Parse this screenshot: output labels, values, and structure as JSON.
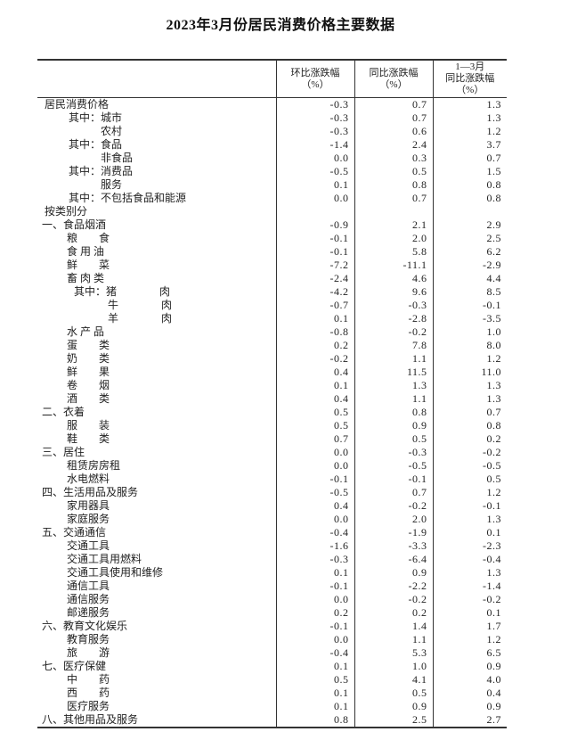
{
  "title": "2023年3月份居民消费价格主要数据",
  "table": {
    "headers": [
      "环比涨跌幅\n（%）",
      "同比涨跌幅\n（%）",
      "1—3月\n同比涨跌幅\n（%）"
    ],
    "rows": [
      {
        "label": "居民消费价格",
        "ind": 8,
        "mom": "-0.3",
        "yoy": "0.7",
        "ytd": "1.3"
      },
      {
        "label": "其中：城市",
        "ind": 35,
        "mom": "-0.3",
        "yoy": "0.7",
        "ytd": "1.3"
      },
      {
        "label": "农村",
        "ind": 71,
        "mom": "-0.3",
        "yoy": "0.6",
        "ytd": "1.2"
      },
      {
        "label": "其中：食品",
        "ind": 35,
        "mom": "-1.4",
        "yoy": "2.4",
        "ytd": "3.7"
      },
      {
        "label": "非食品",
        "ind": 71,
        "mom": "0.0",
        "yoy": "0.3",
        "ytd": "0.7"
      },
      {
        "label": "其中：消费品",
        "ind": 35,
        "mom": "-0.5",
        "yoy": "0.5",
        "ytd": "1.5"
      },
      {
        "label": "服务",
        "ind": 71,
        "mom": "0.1",
        "yoy": "0.8",
        "ytd": "0.8"
      },
      {
        "label": "其中：不包括食品和能源",
        "ind": 35,
        "mom": "0.0",
        "yoy": "0.7",
        "ytd": "0.8"
      },
      {
        "label": "按类别分",
        "ind": 8,
        "mom": "",
        "yoy": "",
        "ytd": ""
      },
      {
        "label": "一、食品烟酒",
        "ind": 5,
        "mom": "-0.9",
        "yoy": "2.1",
        "ytd": "2.9"
      },
      {
        "label": "粮　　食",
        "ind": 33,
        "mom": "-0.1",
        "yoy": "2.0",
        "ytd": "2.5"
      },
      {
        "label": "食 用 油",
        "ind": 33,
        "mom": "-0.1",
        "yoy": "5.8",
        "ytd": "6.2"
      },
      {
        "label": "鲜　　菜",
        "ind": 33,
        "mom": "-7.2",
        "yoy": "-11.1",
        "ytd": "-2.9"
      },
      {
        "label": "畜 肉 类",
        "ind": 33,
        "mom": "-2.4",
        "yoy": "4.6",
        "ytd": "4.4"
      },
      {
        "label": "其中：猪　　　　肉",
        "ind": 41,
        "mom": "-4.2",
        "yoy": "9.6",
        "ytd": "8.5"
      },
      {
        "label": "牛　　　　肉",
        "ind": 79,
        "mom": "-0.7",
        "yoy": "-0.3",
        "ytd": "-0.1"
      },
      {
        "label": "羊　　　　肉",
        "ind": 79,
        "mom": "0.1",
        "yoy": "-2.8",
        "ytd": "-3.5"
      },
      {
        "label": "水 产 品",
        "ind": 33,
        "mom": "-0.8",
        "yoy": "-0.2",
        "ytd": "1.0"
      },
      {
        "label": "蛋　　类",
        "ind": 33,
        "mom": "0.2",
        "yoy": "7.8",
        "ytd": "8.0"
      },
      {
        "label": "奶　　类",
        "ind": 33,
        "mom": "-0.2",
        "yoy": "1.1",
        "ytd": "1.2"
      },
      {
        "label": "鲜　　果",
        "ind": 33,
        "mom": "0.4",
        "yoy": "11.5",
        "ytd": "11.0"
      },
      {
        "label": "卷　　烟",
        "ind": 33,
        "mom": "0.1",
        "yoy": "1.3",
        "ytd": "1.3"
      },
      {
        "label": "酒　　类",
        "ind": 33,
        "mom": "0.4",
        "yoy": "1.1",
        "ytd": "1.3"
      },
      {
        "label": "二、衣着",
        "ind": 5,
        "mom": "0.5",
        "yoy": "0.8",
        "ytd": "0.7"
      },
      {
        "label": "服　　装",
        "ind": 33,
        "mom": "0.5",
        "yoy": "0.9",
        "ytd": "0.8"
      },
      {
        "label": "鞋　　类",
        "ind": 33,
        "mom": "0.7",
        "yoy": "0.5",
        "ytd": "0.2"
      },
      {
        "label": "三、居住",
        "ind": 5,
        "mom": "0.0",
        "yoy": "-0.3",
        "ytd": "-0.2"
      },
      {
        "label": "租赁房房租",
        "ind": 33,
        "mom": "0.0",
        "yoy": "-0.5",
        "ytd": "-0.5"
      },
      {
        "label": "水电燃料",
        "ind": 33,
        "mom": "-0.1",
        "yoy": "-0.1",
        "ytd": "0.5"
      },
      {
        "label": "四、生活用品及服务",
        "ind": 5,
        "mom": "-0.5",
        "yoy": "0.7",
        "ytd": "1.2"
      },
      {
        "label": "家用器具",
        "ind": 33,
        "mom": "0.4",
        "yoy": "-0.2",
        "ytd": "-0.1"
      },
      {
        "label": "家庭服务",
        "ind": 33,
        "mom": "0.0",
        "yoy": "2.0",
        "ytd": "1.3"
      },
      {
        "label": "五、交通通信",
        "ind": 5,
        "mom": "-0.4",
        "yoy": "-1.9",
        "ytd": "0.1"
      },
      {
        "label": "交通工具",
        "ind": 33,
        "mom": "-1.6",
        "yoy": "-3.3",
        "ytd": "-2.3"
      },
      {
        "label": "交通工具用燃料",
        "ind": 33,
        "mom": "-0.3",
        "yoy": "-6.4",
        "ytd": "-0.4"
      },
      {
        "label": "交通工具使用和维修",
        "ind": 33,
        "mom": "0.1",
        "yoy": "0.9",
        "ytd": "1.3"
      },
      {
        "label": "通信工具",
        "ind": 33,
        "mom": "-0.1",
        "yoy": "-2.2",
        "ytd": "-1.4"
      },
      {
        "label": "通信服务",
        "ind": 33,
        "mom": "0.0",
        "yoy": "-0.2",
        "ytd": "-0.2"
      },
      {
        "label": "邮递服务",
        "ind": 33,
        "mom": "0.2",
        "yoy": "0.2",
        "ytd": "0.1"
      },
      {
        "label": "六、教育文化娱乐",
        "ind": 5,
        "mom": "-0.1",
        "yoy": "1.4",
        "ytd": "1.7"
      },
      {
        "label": "教育服务",
        "ind": 33,
        "mom": "0.0",
        "yoy": "1.1",
        "ytd": "1.2"
      },
      {
        "label": "旅　　游",
        "ind": 33,
        "mom": "-0.4",
        "yoy": "5.3",
        "ytd": "6.5"
      },
      {
        "label": "七、医疗保健",
        "ind": 5,
        "mom": "0.1",
        "yoy": "1.0",
        "ytd": "0.9"
      },
      {
        "label": "中　　药",
        "ind": 33,
        "mom": "0.5",
        "yoy": "4.1",
        "ytd": "4.0"
      },
      {
        "label": "西　　药",
        "ind": 33,
        "mom": "0.1",
        "yoy": "0.5",
        "ytd": "0.4"
      },
      {
        "label": "医疗服务",
        "ind": 33,
        "mom": "0.1",
        "yoy": "0.9",
        "ytd": "0.9"
      },
      {
        "label": "八、其他用品及服务",
        "ind": 5,
        "mom": "0.8",
        "yoy": "2.5",
        "ytd": "2.7"
      }
    ]
  }
}
